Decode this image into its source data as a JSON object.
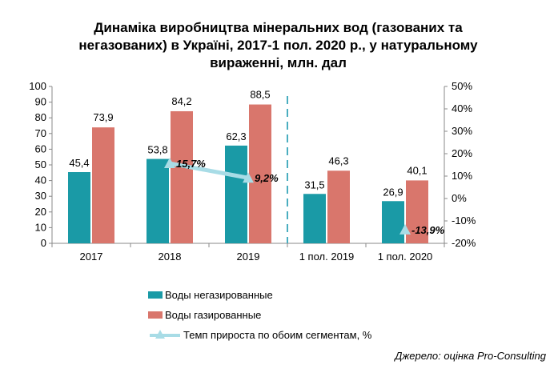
{
  "title_lines": [
    "Динаміка виробництва мінеральних вод (газованих та",
    "негазованих) в Україні, 2017-1 пол. 2020 р., у натуральному",
    "вираженні, млн. дал"
  ],
  "source": "Джерело: оцінка Pro-Consulting",
  "colors": {
    "still": "#1a9aa6",
    "sparkling": "#d9766c",
    "growth": "#a8dce6",
    "divider": "#4aaec0",
    "axis": "#888888"
  },
  "chart_data": {
    "type": "bar",
    "title": "Динаміка виробництва мінеральних вод (газованих та негазованих) в Україні, 2017-1 пол. 2020 р., у натуральному вираженні, млн. дал",
    "categories": [
      "2017",
      "2018",
      "2019",
      "1 пол. 2019",
      "1 пол. 2020"
    ],
    "y_ticks": [
      "0",
      "10",
      "20",
      "30",
      "40",
      "50",
      "60",
      "70",
      "80",
      "90",
      "100"
    ],
    "y2_ticks": [
      "-20%",
      "-10%",
      "0%",
      "10%",
      "20%",
      "30%",
      "40%",
      "50%"
    ],
    "ylim": [
      0,
      100
    ],
    "y2lim": [
      -20,
      50
    ],
    "series": [
      {
        "name": "Воды негазированные",
        "type": "bar",
        "values": [
          45.4,
          53.8,
          62.3,
          31.5,
          26.9
        ],
        "labels": [
          "45,4",
          "53,8",
          "62,3",
          "31,5",
          "26,9"
        ]
      },
      {
        "name": "Воды газированные",
        "type": "bar",
        "values": [
          73.9,
          84.2,
          88.5,
          46.3,
          40.1
        ],
        "labels": [
          "73,9",
          "84,2",
          "88,5",
          "46,3",
          "40,1"
        ]
      },
      {
        "name": "Темп прироста по обоим сегментам, %",
        "type": "line",
        "axis": "secondary",
        "values": [
          null,
          15.7,
          9.2,
          null,
          -13.9
        ],
        "labels": [
          "",
          "15,7%",
          "9,2%",
          "",
          "-13,9%"
        ]
      }
    ],
    "legend_position": "bottom"
  }
}
